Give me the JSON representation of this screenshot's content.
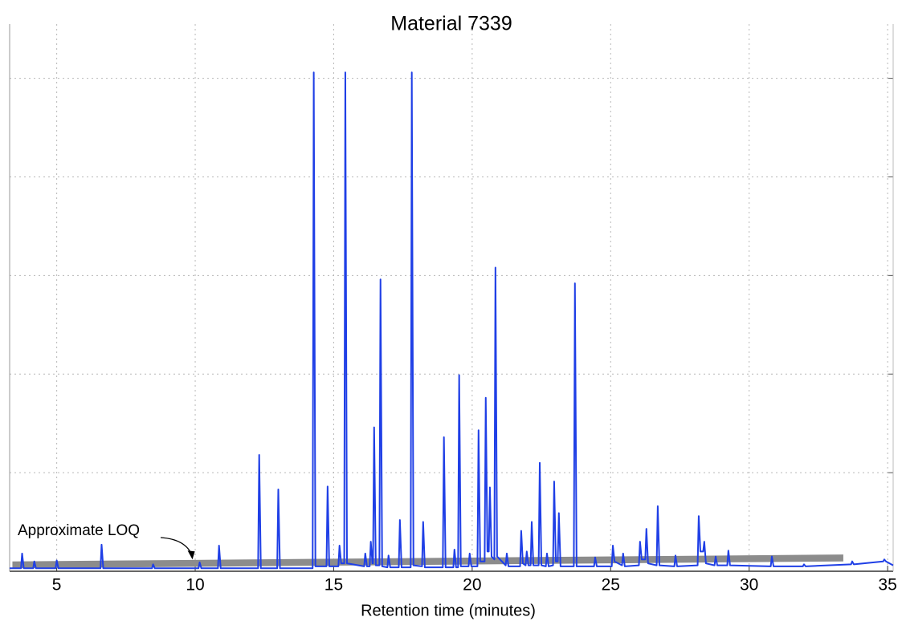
{
  "chart_data": {
    "type": "line",
    "title": "Material 7339",
    "x_label": "Retention time (minutes)",
    "color": "#1f3fe6",
    "x": [
      3.3,
      3.71,
      3.75,
      3.81,
      4.15,
      4.19,
      4.25,
      4.96,
      5.0,
      5.06,
      6.58,
      6.62,
      6.68,
      8.44,
      8.48,
      8.54,
      10.12,
      10.16,
      10.22,
      10.82,
      10.86,
      10.92,
      12.27,
      12.31,
      12.37,
      12.96,
      13.0,
      13.06,
      14.24,
      14.28,
      14.34,
      14.74,
      14.78,
      14.84,
      15.17,
      15.21,
      15.27,
      15.38,
      15.42,
      15.48,
      16.1,
      16.14,
      16.2,
      16.3,
      16.34,
      16.4,
      16.42,
      16.46,
      16.52,
      16.65,
      16.69,
      16.75,
      16.94,
      16.98,
      17.04,
      17.35,
      17.39,
      17.45,
      17.78,
      17.82,
      17.88,
      18.19,
      18.23,
      18.29,
      18.94,
      18.98,
      19.04,
      19.32,
      19.36,
      19.42,
      19.49,
      19.53,
      19.59,
      19.87,
      19.91,
      19.97,
      20.19,
      20.23,
      20.29,
      20.45,
      20.49,
      20.55,
      20.6,
      20.64,
      20.7,
      20.8,
      20.84,
      20.9,
      21.21,
      21.25,
      21.31,
      21.73,
      21.77,
      21.83,
      21.93,
      21.97,
      22.03,
      22.11,
      22.15,
      22.21,
      22.4,
      22.44,
      22.5,
      22.66,
      22.7,
      22.76,
      22.92,
      22.96,
      23.02,
      23.09,
      23.13,
      23.19,
      23.67,
      23.71,
      23.77,
      24.4,
      24.44,
      24.5,
      25.04,
      25.08,
      25.14,
      25.41,
      25.45,
      25.51,
      26.02,
      26.06,
      26.12,
      26.25,
      26.29,
      26.35,
      26.66,
      26.7,
      26.76,
      27.3,
      27.34,
      27.4,
      28.14,
      28.18,
      28.24,
      28.34,
      28.38,
      28.44,
      28.75,
      28.79,
      28.85,
      29.21,
      29.25,
      29.31,
      30.78,
      30.82,
      30.88,
      31.94,
      31.98,
      32.04,
      33.68,
      33.72,
      33.78,
      34.84,
      34.88,
      34.94,
      35.2
    ],
    "values": [
      0.03,
      0.03,
      0.18,
      0.03,
      0.03,
      0.1,
      0.03,
      0.03,
      0.11,
      0.03,
      0.03,
      0.27,
      0.03,
      0.03,
      0.07,
      0.03,
      0.03,
      0.09,
      0.03,
      0.03,
      0.26,
      0.03,
      0.03,
      1.18,
      0.03,
      0.03,
      0.83,
      0.03,
      0.03,
      5.06,
      0.05,
      0.05,
      0.86,
      0.05,
      0.05,
      0.26,
      0.08,
      0.08,
      5.06,
      0.08,
      0.05,
      0.18,
      0.05,
      0.05,
      0.3,
      0.08,
      0.08,
      1.46,
      0.06,
      0.06,
      2.96,
      0.05,
      0.04,
      0.16,
      0.04,
      0.04,
      0.52,
      0.04,
      0.04,
      5.06,
      0.06,
      0.05,
      0.5,
      0.04,
      0.04,
      1.36,
      0.04,
      0.04,
      0.22,
      0.04,
      0.04,
      1.99,
      0.05,
      0.05,
      0.18,
      0.05,
      0.05,
      1.43,
      0.1,
      0.1,
      1.76,
      0.2,
      0.2,
      0.85,
      0.15,
      0.12,
      3.08,
      0.15,
      0.06,
      0.18,
      0.05,
      0.05,
      0.41,
      0.08,
      0.06,
      0.2,
      0.06,
      0.06,
      0.5,
      0.06,
      0.06,
      1.1,
      0.06,
      0.05,
      0.18,
      0.05,
      0.06,
      0.91,
      0.1,
      0.1,
      0.59,
      0.05,
      0.05,
      2.92,
      0.05,
      0.05,
      0.14,
      0.05,
      0.05,
      0.26,
      0.1,
      0.06,
      0.18,
      0.05,
      0.06,
      0.3,
      0.12,
      0.12,
      0.43,
      0.08,
      0.06,
      0.66,
      0.06,
      0.05,
      0.16,
      0.05,
      0.06,
      0.56,
      0.2,
      0.2,
      0.3,
      0.08,
      0.06,
      0.15,
      0.06,
      0.06,
      0.21,
      0.06,
      0.05,
      0.15,
      0.05,
      0.05,
      0.07,
      0.05,
      0.07,
      0.1,
      0.07,
      0.1,
      0.12,
      0.1,
      0.06
    ],
    "xlim": [
      3.3,
      35.2
    ],
    "ylim": [
      0,
      5.55
    ],
    "xticks": [
      5,
      10,
      15,
      20,
      25,
      30,
      35
    ],
    "ygrid": [
      1,
      2,
      3,
      4,
      5
    ],
    "grid": true,
    "loq_band": {
      "color": "#8c8c8c",
      "x": [
        3.4,
        33.4
      ],
      "lower": [
        0.03,
        0.1
      ],
      "upper": [
        0.1,
        0.17
      ]
    },
    "annotations": [
      {
        "text": "Approximate LOQ",
        "xy": [
          9.9,
          0.12
        ]
      }
    ]
  }
}
